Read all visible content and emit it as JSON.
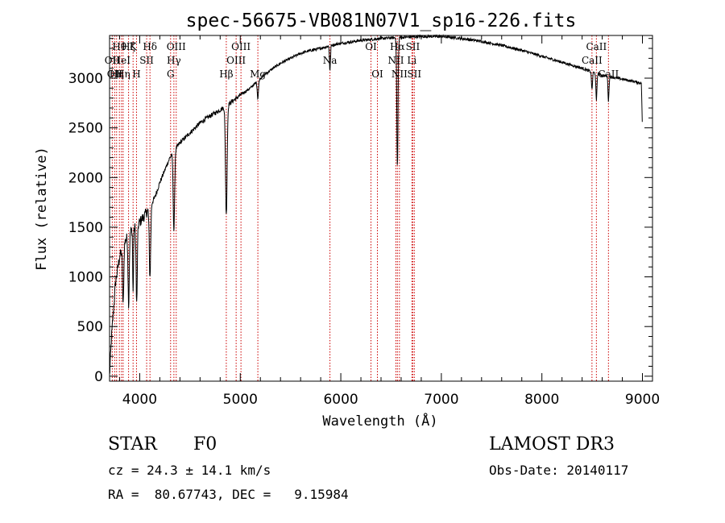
{
  "chart_data": {
    "type": "line",
    "title": "spec-56675-VB081N07V1_sp16-226.fits",
    "xlabel": "Wavelength (Å)",
    "ylabel": "Flux (relative)",
    "xlim": [
      3700,
      9100
    ],
    "ylim": [
      -50,
      3430
    ],
    "xticks": [
      4000,
      5000,
      6000,
      7000,
      8000,
      9000
    ],
    "yticks": [
      0,
      500,
      1000,
      1500,
      2000,
      2500,
      3000
    ],
    "continuum": {
      "x": [
        3700,
        3720,
        3760,
        3800,
        3850,
        3900,
        3950,
        4000,
        4050,
        4100,
        4150,
        4200,
        4300,
        4400,
        4500,
        4600,
        4700,
        4800,
        4900,
        5000,
        5100,
        5200,
        5300,
        5400,
        5500,
        5600,
        5700,
        5800,
        5900,
        6000,
        6200,
        6400,
        6600,
        6800,
        7000,
        7200,
        7400,
        7600,
        7800,
        8000,
        8200,
        8400,
        8500,
        8600,
        8700,
        8800,
        8900,
        8990,
        9000
      ],
      "y": [
        0,
        400,
        950,
        1200,
        1350,
        1450,
        1500,
        1550,
        1620,
        1700,
        1800,
        1950,
        2200,
        2350,
        2450,
        2550,
        2620,
        2680,
        2750,
        2830,
        2900,
        3000,
        3080,
        3150,
        3200,
        3250,
        3280,
        3300,
        3330,
        3350,
        3380,
        3400,
        3410,
        3420,
        3420,
        3400,
        3370,
        3330,
        3280,
        3220,
        3160,
        3100,
        3060,
        3030,
        3010,
        2990,
        2970,
        2950,
        2450
      ]
    },
    "absorption": [
      {
        "center": 3835,
        "depth": 600,
        "width": 6
      },
      {
        "center": 3890,
        "depth": 700,
        "width": 6
      },
      {
        "center": 3934,
        "depth": 650,
        "width": 4
      },
      {
        "center": 3970,
        "depth": 800,
        "width": 6
      },
      {
        "center": 4102,
        "depth": 700,
        "width": 7
      },
      {
        "center": 4340,
        "depth": 800,
        "width": 7
      },
      {
        "center": 4861,
        "depth": 1100,
        "width": 8
      },
      {
        "center": 5175,
        "depth": 180,
        "width": 6
      },
      {
        "center": 5892,
        "depth": 250,
        "width": 5
      },
      {
        "center": 6563,
        "depth": 1300,
        "width": 6
      },
      {
        "center": 8498,
        "depth": 180,
        "width": 5
      },
      {
        "center": 8542,
        "depth": 280,
        "width": 5
      },
      {
        "center": 8662,
        "depth": 250,
        "width": 5
      }
    ],
    "lines": [
      {
        "wavelength": 3727,
        "label": "OII",
        "row": 2
      },
      {
        "wavelength": 3751,
        "label": "OII",
        "row": 3
      },
      {
        "wavelength": 3770,
        "label": "Hη",
        "row": 3
      },
      {
        "wavelength": 3798,
        "label": "Hθ",
        "row": 1
      },
      {
        "wavelength": 3819,
        "label": "HeI",
        "row": 2
      },
      {
        "wavelength": 3835,
        "label": "Hη",
        "row": 3
      },
      {
        "wavelength": 3889,
        "label": "Hζ",
        "row": 1
      },
      {
        "wavelength": 3934,
        "label": "K",
        "row": 1
      },
      {
        "wavelength": 3968,
        "label": "H",
        "row": 3
      },
      {
        "wavelength": 4069,
        "label": "SII",
        "row": 2
      },
      {
        "wavelength": 4102,
        "label": "Hδ",
        "row": 1
      },
      {
        "wavelength": 4307,
        "label": "G",
        "row": 3
      },
      {
        "wavelength": 4340,
        "label": "Hγ",
        "row": 2
      },
      {
        "wavelength": 4363,
        "label": "OIII",
        "row": 1
      },
      {
        "wavelength": 4861,
        "label": "Hβ",
        "row": 3
      },
      {
        "wavelength": 4959,
        "label": "OIII",
        "row": 2
      },
      {
        "wavelength": 5007,
        "label": "OIII",
        "row": 1
      },
      {
        "wavelength": 5175,
        "label": "Mg",
        "row": 3
      },
      {
        "wavelength": 5892,
        "label": "Na",
        "row": 2
      },
      {
        "wavelength": 6300,
        "label": "OI",
        "row": 1
      },
      {
        "wavelength": 6364,
        "label": "OI",
        "row": 3
      },
      {
        "wavelength": 6548,
        "label": "NII",
        "row": 2
      },
      {
        "wavelength": 6563,
        "label": "Hα",
        "row": 1
      },
      {
        "wavelength": 6583,
        "label": "NII",
        "row": 3
      },
      {
        "wavelength": 6707,
        "label": "Li",
        "row": 2
      },
      {
        "wavelength": 6716,
        "label": "SII",
        "row": 1
      },
      {
        "wavelength": 6731,
        "label": "SII",
        "row": 3
      },
      {
        "wavelength": 8498,
        "label": "CaII",
        "row": 2
      },
      {
        "wavelength": 8542,
        "label": "CaII",
        "row": 1
      },
      {
        "wavelength": 8662,
        "label": "CaII",
        "row": 3
      }
    ]
  },
  "info": {
    "object_class": "STAR",
    "subclass": "F0",
    "survey": "LAMOST DR3",
    "cz": "cz = 24.3 ± 14.1 km/s",
    "obs_date": "Obs-Date: 20140117",
    "coords": "RA =  80.67743, DEC =   9.15984"
  },
  "colors": {
    "spectrum": "#000000",
    "line_marker": "#cc0000",
    "axes": "#000000"
  }
}
